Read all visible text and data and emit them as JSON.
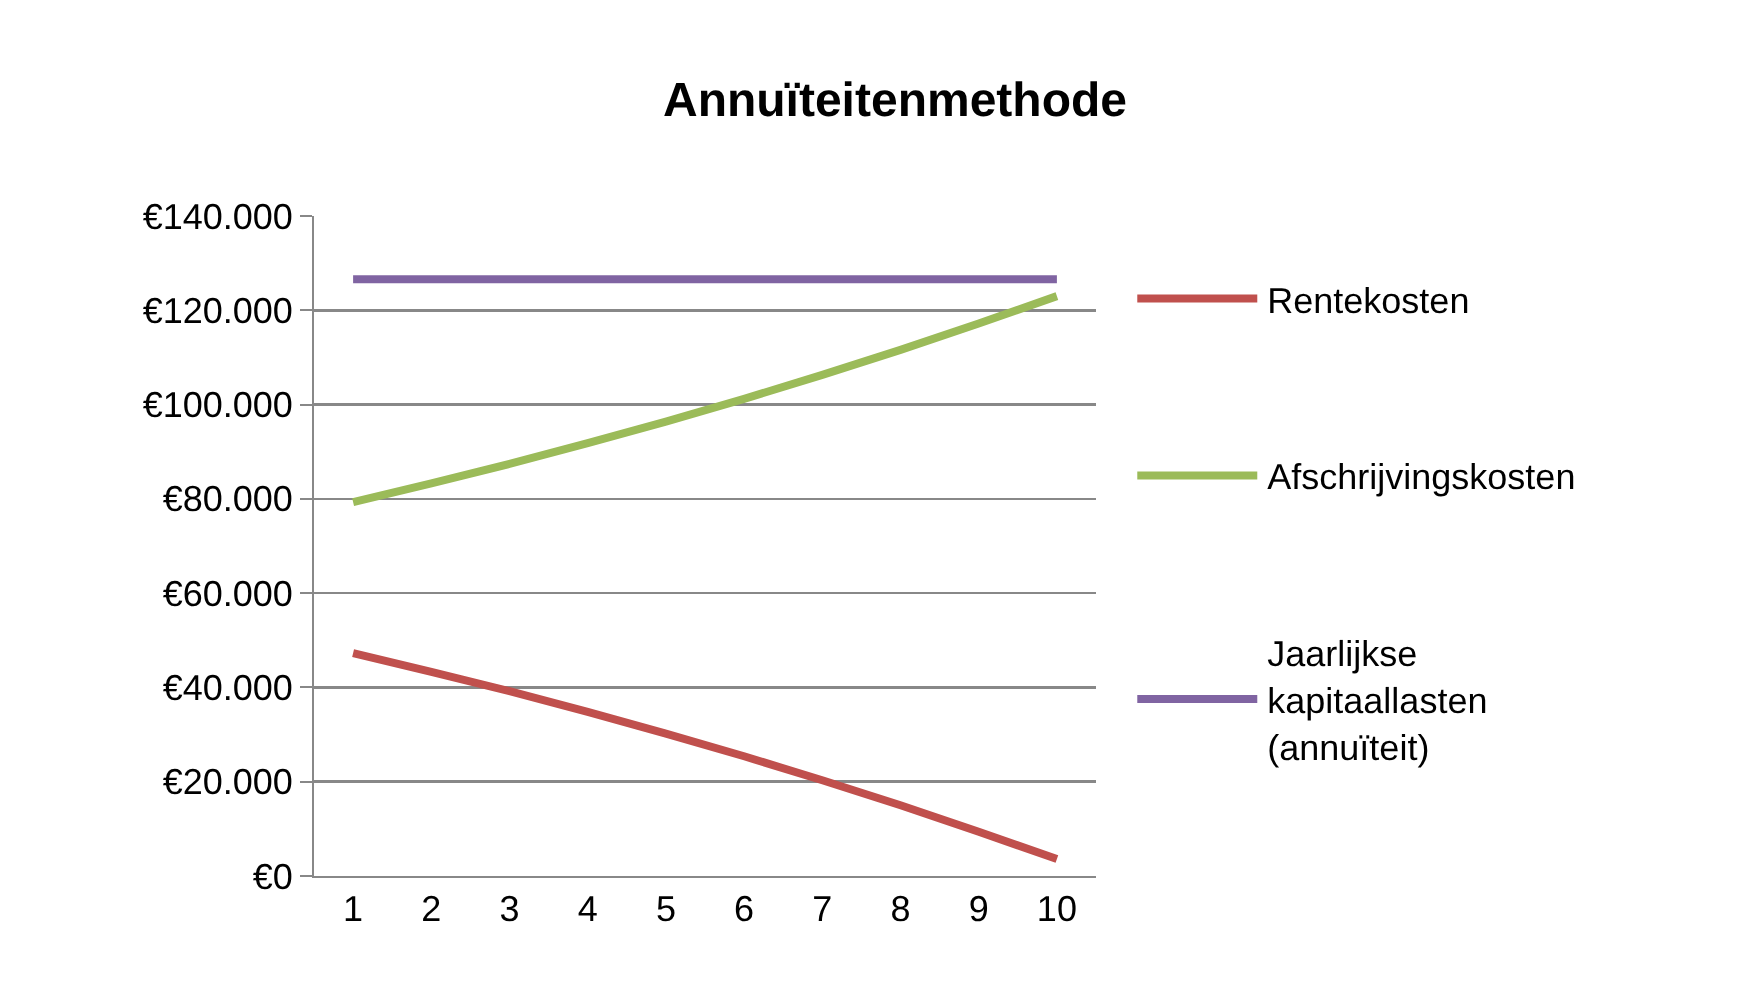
{
  "chart_data": {
    "type": "line",
    "title": "Annuïteitenmethode",
    "categories": [
      "1",
      "2",
      "3",
      "4",
      "5",
      "6",
      "7",
      "8",
      "9",
      "10"
    ],
    "series": [
      {
        "name": "Rentekosten",
        "color": "#c0504d",
        "values": [
          47300,
          43300,
          39200,
          34800,
          30200,
          25400,
          20300,
          15000,
          9400,
          3600
        ]
      },
      {
        "name": "Afschrijvingskosten",
        "color": "#9bbb59",
        "values": [
          79300,
          83300,
          87400,
          91800,
          96400,
          101200,
          106300,
          111600,
          117200,
          123000
        ]
      },
      {
        "name": "Jaarlijkse kapitaallasten (annuïteit)",
        "color": "#8064a2",
        "values": [
          126600,
          126600,
          126600,
          126600,
          126600,
          126600,
          126600,
          126600,
          126600,
          126600
        ]
      }
    ],
    "ylim": [
      0,
      140000
    ],
    "yticks": [
      {
        "value": 0,
        "label": "€0"
      },
      {
        "value": 20000,
        "label": "€20.000"
      },
      {
        "value": 40000,
        "label": "€40.000"
      },
      {
        "value": 60000,
        "label": "€60.000"
      },
      {
        "value": 80000,
        "label": "€80.000"
      },
      {
        "value": 100000,
        "label": "€100.000"
      },
      {
        "value": 120000,
        "label": "€120.000"
      },
      {
        "value": 140000,
        "label": "€140.000"
      }
    ],
    "grid": "y",
    "legend": "right",
    "marker": "none",
    "line_style": "solid"
  }
}
